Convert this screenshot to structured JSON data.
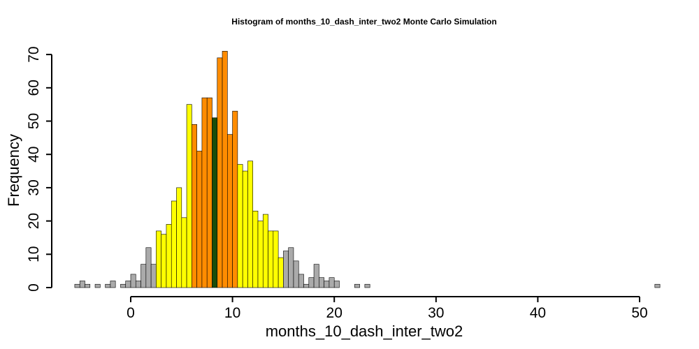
{
  "chart_data": {
    "type": "bar",
    "title": "Histogram of  months_10_dash_inter_two2  Monte Carlo Simulation",
    "xlabel": "months_10_dash_inter_two2",
    "ylabel": "Frequency",
    "xlim": [
      -6,
      51.75
    ],
    "ylim": [
      0,
      70
    ],
    "x_ticks": [
      0,
      10,
      20,
      30,
      40,
      50
    ],
    "y_ticks": [
      0,
      10,
      20,
      30,
      40,
      50,
      60,
      70
    ],
    "bin_width": 0.5,
    "bin_start": -5.5,
    "values": [
      1,
      2,
      1,
      0,
      1,
      0,
      1,
      2,
      0,
      1,
      2,
      4,
      2,
      7,
      12,
      7,
      17,
      16,
      19,
      26,
      30,
      21,
      55,
      49,
      41,
      57,
      57,
      51,
      69,
      71,
      46,
      53,
      37,
      35,
      38,
      23,
      20,
      22,
      17,
      17,
      9,
      11,
      12,
      8,
      4,
      1,
      3,
      7,
      3,
      2,
      3,
      2,
      0,
      0,
      0,
      1,
      0,
      1,
      0,
      0,
      0,
      0,
      0,
      0,
      0,
      0,
      0,
      0,
      0,
      0,
      0,
      0,
      0,
      0,
      0,
      0,
      0,
      0,
      0,
      0,
      0,
      0,
      0,
      0,
      0,
      0,
      0,
      0,
      0,
      0,
      0,
      0,
      0,
      0,
      0,
      0,
      0,
      0,
      0,
      0,
      0,
      0,
      0,
      0,
      0,
      0,
      0,
      0,
      0,
      0,
      0,
      0,
      0,
      0,
      1
    ],
    "bin_colors": [
      {
        "from": -5.5,
        "to": 2.5,
        "color": "#aaaaaa"
      },
      {
        "from": 2.5,
        "to": 6,
        "color": "#ffff00"
      },
      {
        "from": 6,
        "to": 8.25,
        "color": "#ff8c00"
      },
      {
        "from": 8.25,
        "to": 8.75,
        "color": "#1a4d0a"
      },
      {
        "from": 8.75,
        "to": 10.5,
        "color": "#ff8c00"
      },
      {
        "from": 10.5,
        "to": 15,
        "color": "#ffff00"
      },
      {
        "from": 15,
        "to": 52,
        "color": "#aaaaaa"
      }
    ],
    "grid": false,
    "legend": "none"
  }
}
